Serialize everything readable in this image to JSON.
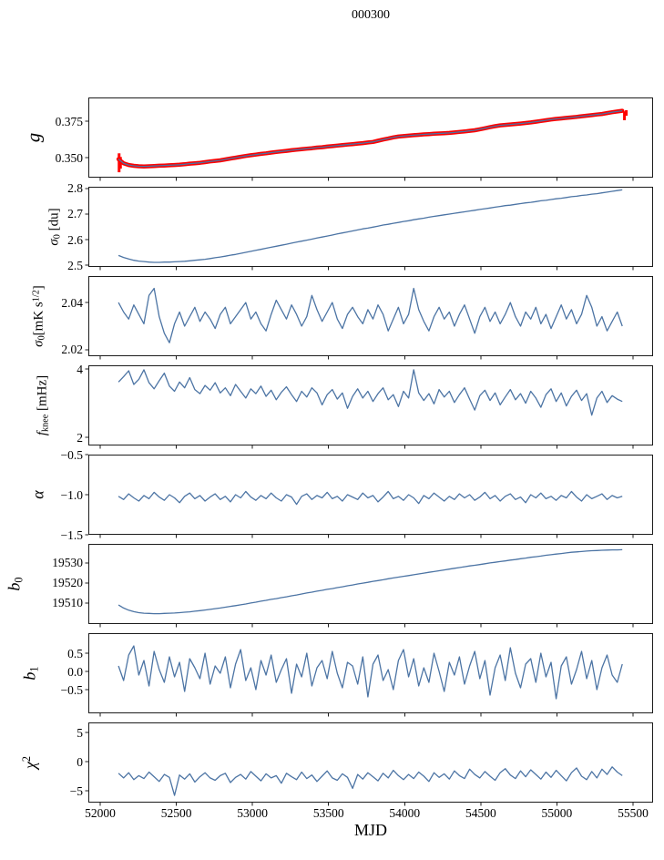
{
  "chart_data": {
    "type": "line",
    "title": "000300",
    "xlabel": "MJD",
    "grid": false,
    "legend": "none",
    "xlim": [
      51922,
      55632
    ],
    "xticks": [
      {
        "v": 52000,
        "label": "52000"
      },
      {
        "v": 52500,
        "label": "52500"
      },
      {
        "v": 53000,
        "label": "53000"
      },
      {
        "v": 53500,
        "label": "53500"
      },
      {
        "v": 54000,
        "label": "54000"
      },
      {
        "v": 54500,
        "label": "54500"
      },
      {
        "v": 55000,
        "label": "55000"
      },
      {
        "v": 55500,
        "label": "55500"
      }
    ],
    "x_start": 52120,
    "x_end": 55430,
    "line_color": "#4c74a4",
    "frame_color": "#1c1c1c",
    "panels": [
      {
        "id": "g",
        "ylabel": [
          {
            "t": "g",
            "i": 1
          }
        ],
        "ylabel_text": "g",
        "ylim": [
          0.3363,
          0.3913
        ],
        "yticks": [
          {
            "v": 0.35,
            "label": "0.350"
          },
          {
            "v": 0.375,
            "label": "0.375"
          }
        ],
        "overlay": {
          "color": "#ff0000",
          "width": 4.5,
          "spikes": [
            [
              52124,
              0.34,
              0.353
            ],
            [
              52133,
              0.3425,
              0.3505
            ],
            [
              55444,
              0.3757,
              0.3818
            ],
            [
              55456,
              0.3788,
              0.3826
            ]
          ]
        },
        "values": [
          0.349,
          0.3462,
          0.345,
          0.3444,
          0.3441,
          0.344,
          0.3441,
          0.3443,
          0.3445,
          0.3446,
          0.3448,
          0.345,
          0.3452,
          0.3455,
          0.3459,
          0.3462,
          0.3465,
          0.3469,
          0.3474,
          0.3478,
          0.3482,
          0.3488,
          0.3494,
          0.35,
          0.3506,
          0.3512,
          0.3517,
          0.3521,
          0.3526,
          0.353,
          0.3535,
          0.3539,
          0.3543,
          0.3547,
          0.3551,
          0.3555,
          0.3558,
          0.3562,
          0.3565,
          0.3569,
          0.3572,
          0.3576,
          0.3579,
          0.3583,
          0.3586,
          0.359,
          0.3593,
          0.3597,
          0.36,
          0.3604,
          0.3608,
          0.3616,
          0.3624,
          0.3631,
          0.3639,
          0.3645,
          0.3648,
          0.3651,
          0.3654,
          0.3657,
          0.366,
          0.3662,
          0.3664,
          0.3666,
          0.3668,
          0.367,
          0.3673,
          0.3677,
          0.368,
          0.3684,
          0.3688,
          0.3695,
          0.3702,
          0.3709,
          0.3716,
          0.3722,
          0.3725,
          0.3728,
          0.3731,
          0.3734,
          0.3738,
          0.3742,
          0.3747,
          0.3752,
          0.3757,
          0.3762,
          0.3766,
          0.3769,
          0.3773,
          0.3776,
          0.378,
          0.3784,
          0.3788,
          0.3792,
          0.3796,
          0.38,
          0.3806,
          0.3812,
          0.3817,
          0.3822
        ]
      },
      {
        "id": "s0du",
        "ylabel": [
          {
            "t": "σ",
            "i": 1
          },
          {
            "t": "0",
            "sub": 1
          },
          {
            "t": " [du]"
          }
        ],
        "ylabel_text": "σ0 [du]",
        "ylim": [
          2.493,
          2.807
        ],
        "yticks": [
          {
            "v": 2.5,
            "label": "2.5"
          },
          {
            "v": 2.6,
            "label": "2.6"
          },
          {
            "v": 2.7,
            "label": "2.7"
          },
          {
            "v": 2.8,
            "label": "2.8"
          }
        ],
        "values": [
          2.538,
          2.53,
          2.524,
          2.519,
          2.516,
          2.514,
          2.512,
          2.511,
          2.511,
          2.512,
          2.512,
          2.513,
          2.514,
          2.515,
          2.517,
          2.519,
          2.521,
          2.523,
          2.526,
          2.529,
          2.532,
          2.535,
          2.539,
          2.542,
          2.546,
          2.55,
          2.554,
          2.558,
          2.562,
          2.566,
          2.57,
          2.574,
          2.578,
          2.582,
          2.586,
          2.59,
          2.594,
          2.598,
          2.602,
          2.606,
          2.61,
          2.614,
          2.618,
          2.622,
          2.626,
          2.63,
          2.634,
          2.638,
          2.642,
          2.645,
          2.649,
          2.653,
          2.657,
          2.66,
          2.664,
          2.667,
          2.671,
          2.674,
          2.678,
          2.681,
          2.684,
          2.688,
          2.691,
          2.694,
          2.697,
          2.7,
          2.703,
          2.706,
          2.709,
          2.712,
          2.715,
          2.718,
          2.721,
          2.724,
          2.727,
          2.73,
          2.733,
          2.735,
          2.738,
          2.741,
          2.744,
          2.746,
          2.749,
          2.752,
          2.754,
          2.757,
          2.76,
          2.762,
          2.765,
          2.768,
          2.77,
          2.773,
          2.775,
          2.778,
          2.78,
          2.783,
          2.786,
          2.789,
          2.792,
          2.795
        ]
      },
      {
        "id": "s0mk",
        "ylabel": [
          {
            "t": "σ",
            "i": 1
          },
          {
            "t": "0",
            "sub": 1
          },
          {
            "t": "[mK s"
          },
          {
            "t": "1/2",
            "sup": 1
          },
          {
            "t": "]"
          }
        ],
        "ylabel_text": "σ0[mK s^1/2]",
        "ylim": [
          2.0173,
          2.0512
        ],
        "yticks": [
          {
            "v": 2.02,
            "label": "2.02"
          },
          {
            "v": 2.04,
            "label": "2.04"
          }
        ],
        "values": [
          2.04,
          2.036,
          2.033,
          2.039,
          2.035,
          2.031,
          2.043,
          2.046,
          2.034,
          2.027,
          2.023,
          2.031,
          2.036,
          2.03,
          2.034,
          2.038,
          2.032,
          2.036,
          2.033,
          2.029,
          2.035,
          2.038,
          2.031,
          2.034,
          2.037,
          2.04,
          2.033,
          2.036,
          2.031,
          2.028,
          2.035,
          2.041,
          2.037,
          2.033,
          2.039,
          2.035,
          2.03,
          2.034,
          2.043,
          2.037,
          2.032,
          2.036,
          2.04,
          2.033,
          2.029,
          2.035,
          2.038,
          2.034,
          2.031,
          2.037,
          2.033,
          2.039,
          2.035,
          2.028,
          2.033,
          2.038,
          2.031,
          2.035,
          2.046,
          2.037,
          2.032,
          2.028,
          2.034,
          2.038,
          2.033,
          2.036,
          2.03,
          2.035,
          2.039,
          2.033,
          2.027,
          2.034,
          2.038,
          2.032,
          2.036,
          2.031,
          2.035,
          2.04,
          2.034,
          2.03,
          2.036,
          2.033,
          2.038,
          2.031,
          2.035,
          2.029,
          2.034,
          2.039,
          2.033,
          2.037,
          2.031,
          2.035,
          2.043,
          2.038,
          2.03,
          2.034,
          2.028,
          2.032,
          2.036,
          2.03
        ]
      },
      {
        "id": "fknee",
        "ylabel": [
          {
            "t": "f",
            "i": 1
          },
          {
            "t": "knee",
            "sub": 1
          },
          {
            "t": " [mHz]"
          }
        ],
        "ylabel_text": "f_knee [mHz]",
        "ylim": [
          1.76,
          4.11
        ],
        "yticks": [
          {
            "v": 2,
            "label": "2"
          },
          {
            "v": 4,
            "label": "4"
          }
        ],
        "values": [
          3.62,
          3.78,
          3.95,
          3.55,
          3.7,
          3.98,
          3.6,
          3.42,
          3.66,
          3.88,
          3.5,
          3.35,
          3.62,
          3.45,
          3.75,
          3.4,
          3.28,
          3.52,
          3.38,
          3.6,
          3.3,
          3.45,
          3.22,
          3.55,
          3.35,
          3.15,
          3.42,
          3.28,
          3.5,
          3.2,
          3.38,
          3.1,
          3.32,
          3.48,
          3.25,
          3.05,
          3.35,
          3.18,
          3.45,
          3.3,
          2.95,
          3.25,
          3.4,
          3.12,
          3.3,
          2.85,
          3.2,
          3.42,
          3.15,
          3.35,
          3.05,
          3.28,
          3.45,
          3.1,
          3.25,
          2.9,
          3.35,
          3.15,
          3.98,
          3.3,
          3.08,
          3.28,
          2.98,
          3.4,
          3.18,
          3.35,
          3.02,
          3.25,
          3.45,
          3.12,
          2.8,
          3.22,
          3.38,
          3.08,
          3.3,
          2.95,
          3.18,
          3.4,
          3.1,
          3.28,
          3.0,
          3.35,
          3.15,
          2.88,
          3.25,
          3.42,
          3.05,
          3.3,
          2.92,
          3.2,
          3.38,
          3.08,
          3.28,
          2.65,
          3.15,
          3.35,
          3.02,
          3.22,
          3.12,
          3.05
        ]
      },
      {
        "id": "alpha",
        "ylabel": [
          {
            "t": "α",
            "i": 1
          }
        ],
        "ylabel_text": "α",
        "ylim": [
          -1.5,
          -0.5
        ],
        "yticks": [
          {
            "v": -1.5,
            "label": "−1.5"
          },
          {
            "v": -1.0,
            "label": "−1.0"
          },
          {
            "v": -0.5,
            "label": "−0.5"
          }
        ],
        "values": [
          -1.02,
          -1.06,
          -0.99,
          -1.04,
          -1.08,
          -1.01,
          -1.05,
          -0.97,
          -1.03,
          -1.07,
          -1.0,
          -1.04,
          -1.1,
          -1.02,
          -0.98,
          -1.05,
          -1.01,
          -1.08,
          -1.03,
          -0.99,
          -1.06,
          -1.02,
          -1.09,
          -1.0,
          -1.04,
          -0.96,
          -1.03,
          -1.07,
          -1.01,
          -1.05,
          -0.98,
          -1.04,
          -1.08,
          -1.0,
          -1.03,
          -1.12,
          -1.02,
          -0.99,
          -1.06,
          -1.01,
          -1.04,
          -0.97,
          -1.05,
          -1.02,
          -1.08,
          -1.0,
          -1.03,
          -1.06,
          -0.98,
          -1.04,
          -1.01,
          -1.09,
          -1.03,
          -0.96,
          -1.05,
          -1.02,
          -1.07,
          -1.0,
          -1.04,
          -1.11,
          -1.01,
          -1.05,
          -0.98,
          -1.03,
          -1.08,
          -1.02,
          -1.06,
          -0.99,
          -1.04,
          -1.0,
          -1.07,
          -1.03,
          -0.97,
          -1.05,
          -1.01,
          -1.08,
          -1.02,
          -0.99,
          -1.06,
          -1.03,
          -1.1,
          -1.0,
          -1.04,
          -0.98,
          -1.05,
          -1.02,
          -1.07,
          -1.01,
          -1.04,
          -0.96,
          -1.03,
          -1.08,
          -1.0,
          -1.05,
          -1.02,
          -0.99,
          -1.06,
          -1.01,
          -1.04,
          -1.02
        ]
      },
      {
        "id": "b0",
        "ylabel": [
          {
            "t": "b",
            "i": 1
          },
          {
            "t": "0",
            "sub": 1
          }
        ],
        "ylabel_text": "b0",
        "ylim": [
          19499.5,
          19539.5
        ],
        "yticks": [
          {
            "v": 19510,
            "label": "19510"
          },
          {
            "v": 19520,
            "label": "19520"
          },
          {
            "v": 19530,
            "label": "19530"
          }
        ],
        "values": [
          19509.0,
          19507.5,
          19506.4,
          19505.7,
          19505.2,
          19504.9,
          19504.8,
          19504.7,
          19504.7,
          19504.8,
          19504.9,
          19505.0,
          19505.2,
          19505.4,
          19505.6,
          19505.9,
          19506.2,
          19506.5,
          19506.8,
          19507.2,
          19507.5,
          19507.9,
          19508.3,
          19508.7,
          19509.1,
          19509.5,
          19510.0,
          19510.4,
          19510.9,
          19511.3,
          19511.8,
          19512.2,
          19512.7,
          19513.1,
          19513.6,
          19514.0,
          19514.5,
          19515.0,
          19515.4,
          19515.9,
          19516.3,
          19516.8,
          19517.2,
          19517.7,
          19518.1,
          19518.6,
          19519.0,
          19519.5,
          19519.9,
          19520.3,
          19520.8,
          19521.2,
          19521.6,
          19522.1,
          19522.5,
          19522.9,
          19523.3,
          19523.7,
          19524.1,
          19524.5,
          19524.9,
          19525.3,
          19525.7,
          19526.1,
          19526.5,
          19526.9,
          19527.3,
          19527.7,
          19528.1,
          19528.5,
          19528.8,
          19529.2,
          19529.6,
          19530.0,
          19530.3,
          19530.7,
          19531.0,
          19531.4,
          19531.7,
          19532.1,
          19532.4,
          19532.8,
          19533.1,
          19533.4,
          19533.8,
          19534.1,
          19534.4,
          19534.7,
          19535.0,
          19535.3,
          19535.5,
          19535.7,
          19535.9,
          19536.1,
          19536.2,
          19536.3,
          19536.4,
          19536.5,
          19536.5,
          19536.6
        ]
      },
      {
        "id": "b1",
        "ylabel": [
          {
            "t": "b",
            "i": 1
          },
          {
            "t": "1",
            "sub": 1
          }
        ],
        "ylabel_text": "b1",
        "ylim": [
          -1.15,
          1.05
        ],
        "yticks": [
          {
            "v": -0.5,
            "label": "−0.5"
          },
          {
            "v": 0.0,
            "label": "0.0"
          },
          {
            "v": 0.5,
            "label": "0.5"
          }
        ],
        "values": [
          0.15,
          -0.25,
          0.45,
          0.7,
          -0.1,
          0.3,
          -0.4,
          0.55,
          0.05,
          -0.3,
          0.4,
          -0.15,
          0.25,
          -0.55,
          0.35,
          0.1,
          -0.2,
          0.5,
          -0.35,
          0.15,
          -0.05,
          0.4,
          -0.45,
          0.2,
          0.6,
          -0.25,
          0.1,
          -0.5,
          0.3,
          -0.1,
          0.45,
          -0.3,
          0.05,
          0.35,
          -0.6,
          0.2,
          -0.15,
          0.5,
          -0.4,
          0.1,
          0.3,
          -0.2,
          0.55,
          -0.05,
          -0.45,
          0.25,
          0.15,
          -0.35,
          0.4,
          -0.7,
          0.2,
          0.45,
          -0.25,
          0.05,
          -0.5,
          0.3,
          0.6,
          -0.15,
          0.35,
          -0.4,
          0.1,
          -0.3,
          0.5,
          0.0,
          -0.55,
          0.25,
          -0.1,
          0.4,
          -0.35,
          0.15,
          0.55,
          -0.2,
          0.3,
          -0.65,
          0.1,
          0.45,
          -0.25,
          0.65,
          -0.05,
          -0.45,
          0.2,
          0.35,
          -0.3,
          0.5,
          -0.15,
          0.25,
          -0.75,
          0.15,
          0.4,
          -0.35,
          0.05,
          0.55,
          -0.2,
          0.3,
          -0.5,
          0.1,
          0.45,
          -0.1,
          -0.3,
          0.2
        ]
      },
      {
        "id": "chi2",
        "ylabel": [
          {
            "t": "χ",
            "i": 1
          },
          {
            "t": "2",
            "sup": 1
          }
        ],
        "ylabel_text": "χ²",
        "ylim": [
          -7.03,
          6.72
        ],
        "yticks": [
          {
            "v": -5,
            "label": "−5"
          },
          {
            "v": 0,
            "label": "0"
          },
          {
            "v": 5,
            "label": "5"
          }
        ],
        "values": [
          -2.0,
          -2.8,
          -1.9,
          -3.1,
          -2.4,
          -2.9,
          -1.8,
          -2.6,
          -3.4,
          -2.2,
          -2.7,
          -5.8,
          -2.3,
          -3.0,
          -2.1,
          -3.5,
          -2.6,
          -1.9,
          -2.8,
          -3.2,
          -2.4,
          -2.0,
          -3.6,
          -2.7,
          -2.2,
          -3.0,
          -1.7,
          -2.5,
          -3.3,
          -2.1,
          -2.8,
          -2.4,
          -3.7,
          -2.0,
          -2.6,
          -3.1,
          -1.8,
          -2.9,
          -2.3,
          -3.4,
          -2.5,
          -1.6,
          -2.8,
          -3.2,
          -2.1,
          -2.7,
          -4.6,
          -2.2,
          -3.0,
          -1.9,
          -2.6,
          -3.3,
          -2.0,
          -2.8,
          -1.5,
          -2.4,
          -3.1,
          -2.2,
          -2.9,
          -1.8,
          -2.5,
          -3.4,
          -1.9,
          -2.7,
          -2.1,
          -3.0,
          -1.6,
          -2.4,
          -2.9,
          -1.3,
          -2.2,
          -2.8,
          -1.7,
          -2.5,
          -3.2,
          -1.9,
          -1.2,
          -2.3,
          -2.9,
          -1.6,
          -2.6,
          -1.4,
          -2.2,
          -3.0,
          -1.8,
          -2.7,
          -1.5,
          -2.4,
          -3.3,
          -1.9,
          -1.1,
          -2.5,
          -3.1,
          -1.7,
          -2.8,
          -1.3,
          -2.2,
          -0.9,
          -1.8,
          -2.4
        ]
      }
    ]
  }
}
